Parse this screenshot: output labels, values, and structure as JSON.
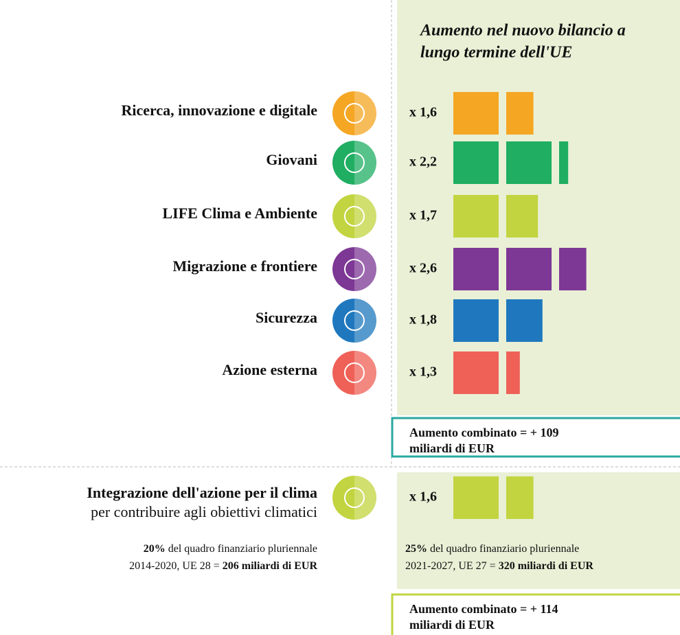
{
  "panel_title": [
    "Aumento nel nuovo bilancio a",
    "lungo termine dell'UE"
  ],
  "rows": [
    {
      "label": "Ricerca, innovazione e digitale",
      "factor": {
        "value": 1.6,
        "label": "x 1,6"
      },
      "color": "#f5a623"
    },
    {
      "label": "Giovani",
      "factor": {
        "value": 2.2,
        "label": "x 2,2"
      },
      "color": "#1fae62"
    },
    {
      "label": "LIFE Clima e Ambiente",
      "factor": {
        "value": 1.7,
        "label": "x 1,7"
      },
      "color": "#c2d43f"
    },
    {
      "label": "Migrazione e frontiere",
      "factor": {
        "value": 2.6,
        "label": "x 2,6"
      },
      "color": "#7d3794"
    },
    {
      "label": "Sicurezza",
      "factor": {
        "value": 1.8,
        "label": "x 1,8"
      },
      "color": "#1f78be"
    },
    {
      "label": "Azione esterna",
      "factor": {
        "value": 1.3,
        "label": "x 1,3"
      },
      "color": "#ef6157"
    }
  ],
  "combined_1": [
    "Aumento combinato = + 109",
    "miliardi di EUR"
  ],
  "climate": {
    "title": "Integrazione dell'azione per il clima",
    "subtitle": "per contribuire agli obiettivi climatici",
    "factor": {
      "value": 1.6,
      "label": "x 1,6"
    },
    "color": "#c2d43f",
    "before": [
      [
        "20%",
        " del quadro finanziario pluriennale"
      ],
      [
        "2014-2020, UE 28 = ",
        "206 miliardi di EUR"
      ]
    ],
    "after": [
      [
        "25%",
        " del quadro finanziario pluriennale"
      ],
      [
        "2021-2027, UE 27 = ",
        "320 miliardi di EUR"
      ]
    ]
  },
  "combined_2": [
    "Aumento combinato = + 114",
    "miliardi di EUR"
  ]
}
